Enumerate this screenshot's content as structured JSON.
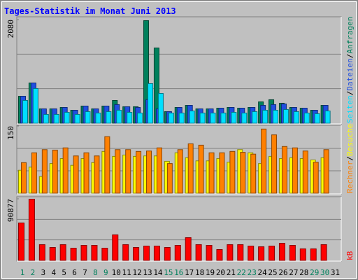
{
  "chart_data": {
    "type": "bar",
    "title": "Tages-Statistik im Monat Juni 2013",
    "categories": [
      "1",
      "2",
      "3",
      "4",
      "5",
      "6",
      "7",
      "8",
      "9",
      "10",
      "11",
      "12",
      "13",
      "14",
      "15",
      "16",
      "17",
      "18",
      "19",
      "20",
      "21",
      "22",
      "23",
      "24",
      "25",
      "26",
      "27",
      "28",
      "29",
      "30",
      "31"
    ],
    "category_colors": [
      "#00805c",
      "#00805c",
      "#000000",
      "#000000",
      "#000000",
      "#000000",
      "#000000",
      "#00805c",
      "#00805c",
      "#000000",
      "#000000",
      "#000000",
      "#000000",
      "#000000",
      "#00805c",
      "#00805c",
      "#000000",
      "#000000",
      "#000000",
      "#000000",
      "#000000",
      "#00805c",
      "#00805c",
      "#000000",
      "#000000",
      "#000000",
      "#000000",
      "#000000",
      "#00805c",
      "#00805c",
      "#000000"
    ],
    "legend_separator": "/",
    "panels": [
      {
        "ylim": [
          0,
          2080
        ],
        "yticks": [
          2080
        ],
        "series": [
          {
            "name": "Anfragen",
            "color": "#00805c",
            "values": [
              548,
              815,
              295,
              295,
              323,
              267,
              351,
              295,
              351,
              464,
              337,
              337,
              2066,
              1518,
              239,
              323,
              365,
              295,
              295,
              309,
              323,
              309,
              323,
              436,
              478,
              408,
              323,
              309,
              267,
              365,
              0
            ]
          },
          {
            "name": "Dateien",
            "color": "#1f4fe0",
            "values": [
              548,
              815,
              295,
              295,
              323,
              267,
              351,
              295,
              351,
              380,
              337,
              323,
              478,
              295,
              239,
              323,
              365,
              295,
              295,
              309,
              323,
              309,
              323,
              365,
              380,
              394,
              323,
              309,
              267,
              365,
              0
            ]
          },
          {
            "name": "Seiten",
            "color": "#00e0ff",
            "values": [
              464,
              703,
              183,
              183,
              225,
              183,
              239,
              211,
              239,
              267,
              225,
              211,
              801,
              604,
              211,
              211,
              253,
              211,
              211,
              211,
              225,
              211,
              239,
              267,
              267,
              281,
              239,
              211,
              197,
              253,
              0
            ]
          }
        ]
      },
      {
        "ylim": [
          0,
          150
        ],
        "yticks": [
          150
        ],
        "series": [
          {
            "name": "Besuche",
            "color": "#ffff00",
            "values": [
              52,
              59,
              38,
              67,
              78,
              63,
              78,
              69,
              94,
              83,
              86,
              83,
              84,
              84,
              72,
              91,
              80,
              73,
              73,
              78,
              70,
              98,
              91,
              67,
              83,
              78,
              80,
              78,
              75,
              80,
              0
            ]
          },
          {
            "name": "Rechner",
            "color": "#ff8000",
            "values": [
              69,
              91,
              98,
              97,
              102,
              84,
              91,
              84,
              127,
              98,
              98,
              94,
              95,
              102,
              67,
              98,
              111,
              108,
              91,
              91,
              94,
              92,
              88,
              144,
              131,
              105,
              102,
              95,
              70,
              98,
              0
            ]
          }
        ]
      },
      {
        "ylim": [
          0,
          90877
        ],
        "yticks": [
          90877
        ],
        "series": [
          {
            "name": "kB",
            "color": "#ff0000",
            "values": [
              55780,
              90877,
              23760,
              19630,
              23760,
              18590,
              22720,
              22720,
              18590,
              38210,
              23760,
              19630,
              21690,
              21690,
              19630,
              22720,
              34080,
              23760,
              22720,
              16520,
              23760,
              23760,
              21690,
              20660,
              21690,
              25820,
              22720,
              17560,
              17560,
              23760,
              0
            ]
          }
        ]
      }
    ]
  }
}
